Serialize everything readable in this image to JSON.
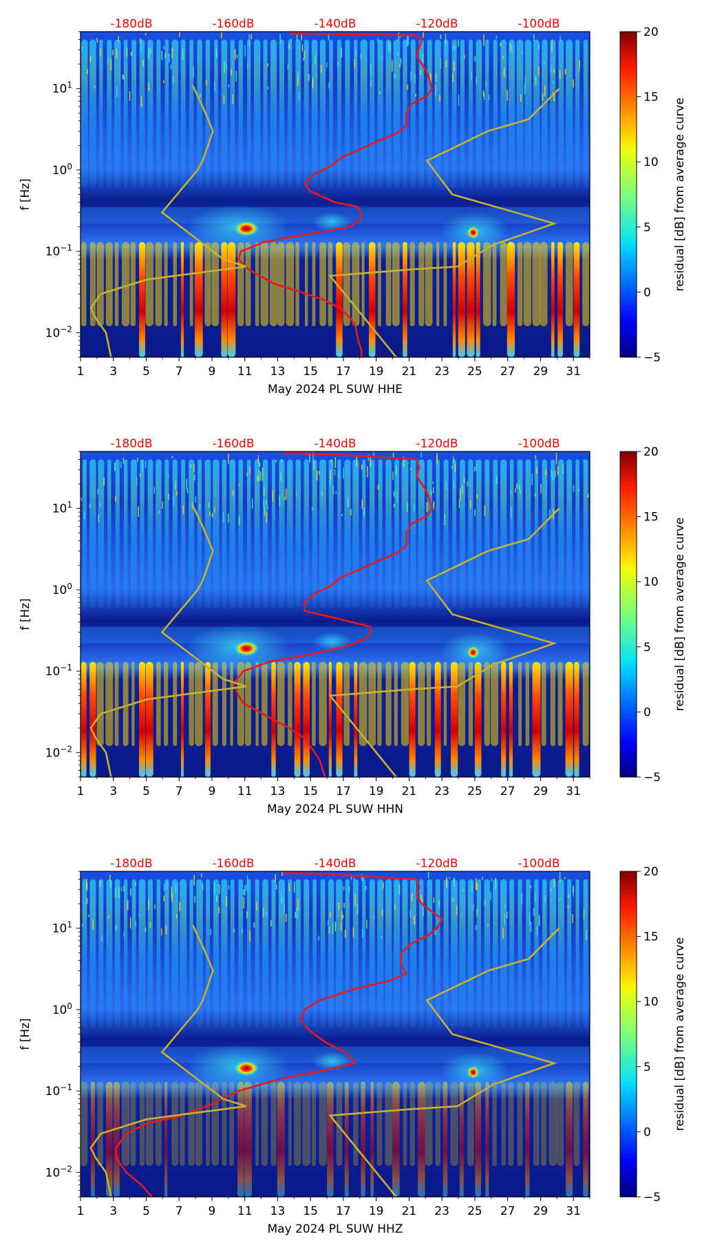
{
  "figure": {
    "panels": [
      {
        "xlabel": "May 2024 PL SUW  HHE"
      },
      {
        "xlabel": "May 2024 PL SUW  HHN"
      },
      {
        "xlabel": "May 2024 PL SUW  HHZ"
      }
    ],
    "ylabel": "f [Hz]",
    "colorbar_label": "residual [dB] from average curve",
    "colors": {
      "psd_curve": "#e8191b",
      "noise_model": "#c8b22c",
      "top_axis_text": "#ff0000"
    }
  },
  "chart_data": [
    {
      "type": "heatmap",
      "title": "",
      "xlabel": "May 2024 PL SUW  HHE",
      "ylabel": "f [Hz]",
      "x_ticks": [
        1,
        3,
        5,
        7,
        9,
        11,
        13,
        15,
        17,
        19,
        21,
        23,
        25,
        27,
        29,
        31
      ],
      "xlim": [
        1,
        32
      ],
      "y_scale": "log",
      "ylim": [
        0.005,
        50
      ],
      "y_ticks": [
        "10^-2",
        "10^-1",
        "10^0",
        "10^1"
      ],
      "top_axis_labels": [
        "-180dB",
        "-160dB",
        "-140dB",
        "-120dB",
        "-100dB"
      ],
      "top_axis_db_range": [
        -190,
        -90
      ],
      "colorbar": {
        "label": "residual [dB] from average curve",
        "min": -5,
        "max": 20,
        "ticks": [
          -5,
          0,
          5,
          10,
          15,
          20
        ],
        "colormap": "jet"
      },
      "series": [
        {
          "name": "average PSD curve",
          "color": "#e8191b",
          "points": [
            [
              -134.9,
              0.005
            ],
            [
              -134.8,
              0.006
            ],
            [
              -135.5,
              0.008
            ],
            [
              -136,
              0.012
            ],
            [
              -137,
              0.015
            ],
            [
              -139,
              0.02
            ],
            [
              -142,
              0.025
            ],
            [
              -147,
              0.032
            ],
            [
              -152,
              0.04
            ],
            [
              -157,
              0.06
            ],
            [
              -159,
              0.08
            ],
            [
              -158.5,
              0.1
            ],
            [
              -154,
              0.13
            ],
            [
              -146,
              0.16
            ],
            [
              -137,
              0.2
            ],
            [
              -135,
              0.25
            ],
            [
              -135,
              0.3
            ],
            [
              -135.5,
              0.35
            ],
            [
              -140,
              0.4
            ],
            [
              -145,
              0.55
            ],
            [
              -146,
              0.7
            ],
            [
              -144,
              0.9
            ],
            [
              -141,
              1.1
            ],
            [
              -139,
              1.4
            ],
            [
              -135,
              1.8
            ],
            [
              -132,
              2.2
            ],
            [
              -128,
              2.8
            ],
            [
              -126,
              3.5
            ],
            [
              -126,
              5
            ],
            [
              -125,
              6.5
            ],
            [
              -122,
              8
            ],
            [
              -121,
              10
            ],
            [
              -121.5,
              13
            ],
            [
              -122,
              16
            ],
            [
              -123,
              20
            ],
            [
              -124,
              25
            ],
            [
              -123.5,
              32
            ],
            [
              -123,
              40
            ],
            [
              -124,
              45
            ],
            [
              -143,
              47
            ],
            [
              -149,
              48
            ]
          ]
        },
        {
          "name": "NHNM / NLNM model",
          "color": "#c8b22c",
          "points_low": [
            [
              -184,
              0.005
            ],
            [
              -185,
              0.01
            ],
            [
              -187,
              0.015
            ],
            [
              -188,
              0.02
            ],
            [
              -186,
              0.03
            ],
            [
              -177,
              0.045
            ],
            [
              -157.5,
              0.065
            ],
            [
              -162,
              0.08
            ],
            [
              -174,
              0.3
            ],
            [
              -167,
              1
            ],
            [
              -166,
              1.3
            ],
            [
              -164,
              3
            ],
            [
              -166,
              6
            ],
            [
              -168,
              11
            ]
          ],
          "points_high": [
            [
              -128,
              0.005
            ],
            [
              -141,
              0.05
            ],
            [
              -125,
              0.06
            ],
            [
              -116,
              0.065
            ],
            [
              -109,
              0.12
            ],
            [
              -97,
              0.22
            ],
            [
              -117,
              0.5
            ],
            [
              -122,
              1.3
            ],
            [
              -110,
              3
            ],
            [
              -102,
              4.2
            ],
            [
              -96,
              10
            ]
          ]
        }
      ]
    },
    {
      "type": "heatmap",
      "title": "",
      "xlabel": "May 2024 PL SUW  HHN",
      "ylabel": "f [Hz]",
      "x_ticks": [
        1,
        3,
        5,
        7,
        9,
        11,
        13,
        15,
        17,
        19,
        21,
        23,
        25,
        27,
        29,
        31
      ],
      "xlim": [
        1,
        32
      ],
      "y_scale": "log",
      "ylim": [
        0.005,
        50
      ],
      "y_ticks": [
        "10^-2",
        "10^-1",
        "10^0",
        "10^1"
      ],
      "top_axis_labels": [
        "-180dB",
        "-160dB",
        "-140dB",
        "-120dB",
        "-100dB"
      ],
      "top_axis_db_range": [
        -190,
        -90
      ],
      "colorbar": {
        "label": "residual [dB] from average curve",
        "min": -5,
        "max": 20,
        "ticks": [
          -5,
          0,
          5,
          10,
          15,
          20
        ],
        "colormap": "jet"
      },
      "series": [
        {
          "name": "average PSD curve",
          "color": "#e8191b",
          "points": [
            [
              -142,
              0.005
            ],
            [
              -143,
              0.008
            ],
            [
              -144,
              0.01
            ],
            [
              -146,
              0.015
            ],
            [
              -149,
              0.02
            ],
            [
              -152,
              0.025
            ],
            [
              -155,
              0.032
            ],
            [
              -158,
              0.04
            ],
            [
              -159,
              0.05
            ],
            [
              -160,
              0.07
            ],
            [
              -158,
              0.1
            ],
            [
              -153,
              0.13
            ],
            [
              -145,
              0.16
            ],
            [
              -138,
              0.2
            ],
            [
              -134,
              0.25
            ],
            [
              -133,
              0.3
            ],
            [
              -133,
              0.35
            ],
            [
              -140,
              0.45
            ],
            [
              -146,
              0.55
            ],
            [
              -146,
              0.7
            ],
            [
              -144,
              0.9
            ],
            [
              -141,
              1.1
            ],
            [
              -139,
              1.4
            ],
            [
              -135,
              1.8
            ],
            [
              -132,
              2.2
            ],
            [
              -128,
              2.8
            ],
            [
              -126,
              3.5
            ],
            [
              -126,
              5
            ],
            [
              -125,
              6.5
            ],
            [
              -122,
              8
            ],
            [
              -121,
              10
            ],
            [
              -121.5,
              13
            ],
            [
              -122,
              16
            ],
            [
              -123,
              20
            ],
            [
              -124,
              25
            ],
            [
              -123.5,
              32
            ],
            [
              -124,
              40
            ],
            [
              -140,
              46
            ],
            [
              -150,
              48
            ]
          ]
        },
        {
          "name": "NHNM / NLNM model",
          "color": "#c8b22c",
          "points_low": [
            [
              -184,
              0.005
            ],
            [
              -185,
              0.01
            ],
            [
              -187,
              0.015
            ],
            [
              -188,
              0.02
            ],
            [
              -186,
              0.03
            ],
            [
              -177,
              0.045
            ],
            [
              -157.5,
              0.065
            ],
            [
              -162,
              0.08
            ],
            [
              -174,
              0.3
            ],
            [
              -167,
              1
            ],
            [
              -166,
              1.3
            ],
            [
              -164,
              3
            ],
            [
              -166,
              6
            ],
            [
              -168,
              11
            ]
          ],
          "points_high": [
            [
              -128,
              0.005
            ],
            [
              -141,
              0.05
            ],
            [
              -125,
              0.06
            ],
            [
              -116,
              0.065
            ],
            [
              -109,
              0.12
            ],
            [
              -97,
              0.22
            ],
            [
              -117,
              0.5
            ],
            [
              -122,
              1.3
            ],
            [
              -110,
              3
            ],
            [
              -102,
              4.2
            ],
            [
              -96,
              10
            ]
          ]
        }
      ]
    },
    {
      "type": "heatmap",
      "title": "",
      "xlabel": "May 2024 PL SUW  HHZ",
      "ylabel": "f [Hz]",
      "x_ticks": [
        1,
        3,
        5,
        7,
        9,
        11,
        13,
        15,
        17,
        19,
        21,
        23,
        25,
        27,
        29,
        31
      ],
      "xlim": [
        1,
        32
      ],
      "y_scale": "log",
      "ylim": [
        0.005,
        50
      ],
      "y_ticks": [
        "10^-2",
        "10^-1",
        "10^0",
        "10^1"
      ],
      "top_axis_labels": [
        "-180dB",
        "-160dB",
        "-140dB",
        "-120dB",
        "-100dB"
      ],
      "top_axis_db_range": [
        -190,
        -90
      ],
      "colorbar": {
        "label": "residual [dB] from average curve",
        "min": -5,
        "max": 20,
        "ticks": [
          -5,
          0,
          5,
          10,
          15,
          20
        ],
        "colormap": "jet"
      },
      "series": [
        {
          "name": "average PSD curve",
          "color": "#e8191b",
          "points": [
            [
              -176,
              0.005
            ],
            [
              -178,
              0.007
            ],
            [
              -181,
              0.01
            ],
            [
              -183,
              0.015
            ],
            [
              -183,
              0.02
            ],
            [
              -181,
              0.03
            ],
            [
              -177,
              0.04
            ],
            [
              -170,
              0.05
            ],
            [
              -164,
              0.07
            ],
            [
              -159,
              0.1
            ],
            [
              -151,
              0.14
            ],
            [
              -142,
              0.18
            ],
            [
              -136,
              0.22
            ],
            [
              -138,
              0.3
            ],
            [
              -142,
              0.4
            ],
            [
              -145,
              0.55
            ],
            [
              -147,
              0.75
            ],
            [
              -146,
              1
            ],
            [
              -143,
              1.3
            ],
            [
              -136,
              1.8
            ],
            [
              -129,
              2.3
            ],
            [
              -126,
              2.8
            ],
            [
              -127,
              3.5
            ],
            [
              -127,
              5
            ],
            [
              -125,
              6.5
            ],
            [
              -122,
              8
            ],
            [
              -120,
              10
            ],
            [
              -119,
              13
            ],
            [
              -121,
              16
            ],
            [
              -123,
              20
            ],
            [
              -124,
              25
            ],
            [
              -123.5,
              32
            ],
            [
              -124,
              40
            ],
            [
              -141,
              46
            ],
            [
              -150,
              48
            ]
          ]
        },
        {
          "name": "NHNM / NLNM model",
          "color": "#c8b22c",
          "points_low": [
            [
              -184,
              0.005
            ],
            [
              -185,
              0.01
            ],
            [
              -187,
              0.015
            ],
            [
              -188,
              0.02
            ],
            [
              -186,
              0.03
            ],
            [
              -177,
              0.045
            ],
            [
              -157.5,
              0.065
            ],
            [
              -162,
              0.08
            ],
            [
              -174,
              0.3
            ],
            [
              -167,
              1
            ],
            [
              -166,
              1.3
            ],
            [
              -164,
              3
            ],
            [
              -166,
              6
            ],
            [
              -168,
              11
            ]
          ],
          "points_high": [
            [
              -128,
              0.005
            ],
            [
              -141,
              0.05
            ],
            [
              -125,
              0.06
            ],
            [
              -116,
              0.065
            ],
            [
              -109,
              0.12
            ],
            [
              -97,
              0.22
            ],
            [
              -117,
              0.5
            ],
            [
              -122,
              1.3
            ],
            [
              -110,
              3
            ],
            [
              -102,
              4.2
            ],
            [
              -96,
              10
            ]
          ]
        }
      ]
    }
  ]
}
